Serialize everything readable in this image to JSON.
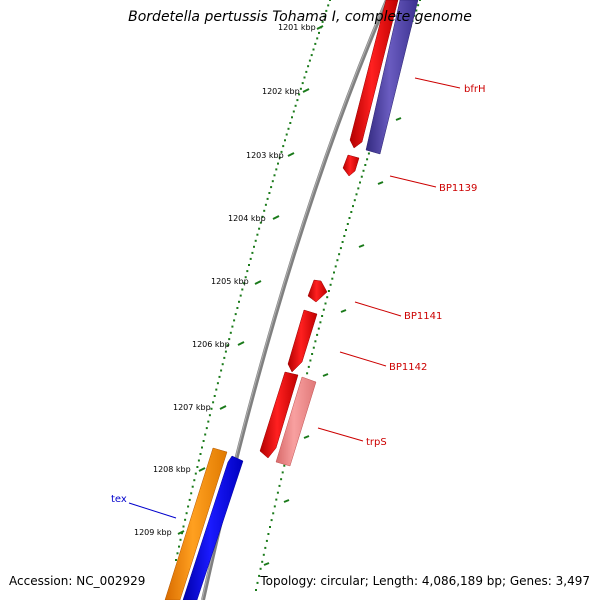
{
  "title": "Bordetella pertussis Tohama I, complete genome",
  "footer": {
    "accession": "Accession: NC_002929",
    "topology": "Topology: circular; Length: 4,086,189 bp; Genes: 3,497"
  },
  "ticks": [
    "1201 kbp",
    "1202 kbp",
    "1203 kbp",
    "1204 kbp",
    "1205 kbp",
    "1206 kbp",
    "1207 kbp",
    "1208 kbp",
    "1209 kbp"
  ],
  "genes": [
    {
      "id": "bfrH",
      "label": "bfrH",
      "color": "#cc0000"
    },
    {
      "id": "BP1139",
      "label": "BP1139",
      "color": "#cc0000"
    },
    {
      "id": "BP1141",
      "label": "BP1141",
      "color": "#cc0000"
    },
    {
      "id": "BP1142",
      "label": "BP1142",
      "color": "#cc0000"
    },
    {
      "id": "trpS",
      "label": "trpS",
      "color": "#cc0000"
    },
    {
      "id": "tex",
      "label": "tex",
      "color": "#0000cc"
    }
  ],
  "colors": {
    "backbone": "#808080",
    "ticks": "#1a7a1a",
    "forward_gene": "#ff0000",
    "pale_gene": "#f08080",
    "blue_gene": "#0000ee",
    "orange_gene": "#ff8c00",
    "purple_gene": "#4b3f99"
  }
}
